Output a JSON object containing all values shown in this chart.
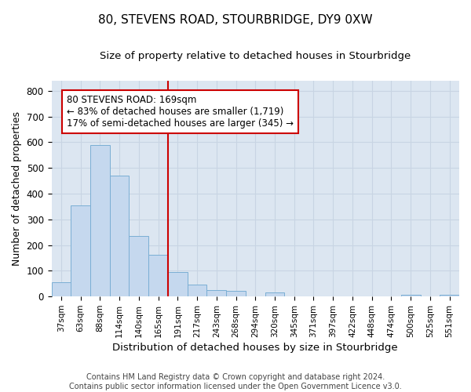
{
  "title": "80, STEVENS ROAD, STOURBRIDGE, DY9 0XW",
  "subtitle": "Size of property relative to detached houses in Stourbridge",
  "xlabel": "Distribution of detached houses by size in Stourbridge",
  "ylabel": "Number of detached properties",
  "categories": [
    "37sqm",
    "63sqm",
    "88sqm",
    "114sqm",
    "140sqm",
    "165sqm",
    "191sqm",
    "217sqm",
    "243sqm",
    "268sqm",
    "294sqm",
    "320sqm",
    "345sqm",
    "371sqm",
    "397sqm",
    "422sqm",
    "448sqm",
    "474sqm",
    "500sqm",
    "525sqm",
    "551sqm"
  ],
  "values": [
    57,
    355,
    590,
    470,
    235,
    163,
    95,
    47,
    25,
    22,
    0,
    15,
    0,
    0,
    0,
    0,
    0,
    0,
    7,
    0,
    7
  ],
  "bar_color": "#c5d8ee",
  "bar_edge_color": "#7aaed4",
  "vline_index": 5,
  "vline_color": "#cc0000",
  "annotation_line1": "80 STEVENS ROAD: 169sqm",
  "annotation_line2": "← 83% of detached houses are smaller (1,719)",
  "annotation_line3": "17% of semi-detached houses are larger (345) →",
  "ylim": [
    0,
    840
  ],
  "yticks": [
    0,
    100,
    200,
    300,
    400,
    500,
    600,
    700,
    800
  ],
  "grid_color": "#c8d4e3",
  "background_color": "#dce6f1",
  "footer_line1": "Contains HM Land Registry data © Crown copyright and database right 2024.",
  "footer_line2": "Contains public sector information licensed under the Open Government Licence v3.0.",
  "title_fontsize": 11,
  "subtitle_fontsize": 9.5,
  "annotation_fontsize": 8.5,
  "footer_fontsize": 7,
  "ylabel_fontsize": 9,
  "xlabel_fontsize": 9.5
}
